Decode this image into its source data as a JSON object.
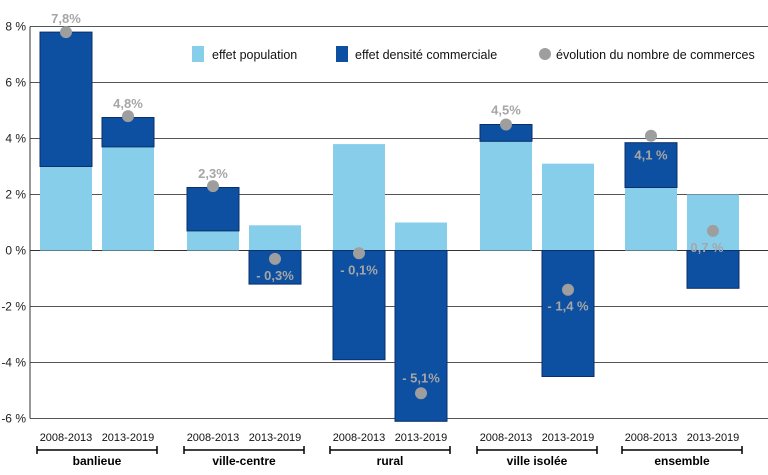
{
  "chart_data": {
    "type": "bar",
    "stacked": true,
    "ylim": [
      -6,
      8
    ],
    "y_ticks": [
      -6,
      -4,
      -2,
      0,
      2,
      4,
      6,
      8
    ],
    "y_tick_labels": [
      "-6 %",
      "-4 %",
      "-2 %",
      "0 %",
      "2 %",
      "4 %",
      "6 %",
      "8 %"
    ],
    "grid": "horizontal",
    "legend_position": "top",
    "groups": [
      "banlieue",
      "ville-centre",
      "rural",
      "ville isolée",
      "ensemble"
    ],
    "periods": [
      "2008-2013",
      "2013-2019"
    ],
    "categories": [
      "banlieue 2008-2013",
      "banlieue 2013-2019",
      "ville-centre 2008-2013",
      "ville-centre 2013-2019",
      "rural 2008-2013",
      "rural 2013-2019",
      "ville isolée 2008-2013",
      "ville isolée 2013-2019",
      "ensemble 2008-2013",
      "ensemble 2013-2019"
    ],
    "series": [
      {
        "name": "effet population",
        "kind": "bar",
        "color": "#87ceeb",
        "values": [
          3.0,
          3.7,
          0.7,
          0.9,
          3.8,
          1.0,
          3.9,
          3.1,
          2.25,
          2.0
        ]
      },
      {
        "name": "effet densité commerciale",
        "kind": "bar",
        "color": "#0d4fa0",
        "values": [
          4.8,
          1.05,
          1.55,
          -1.2,
          -3.9,
          -6.1,
          0.6,
          -4.5,
          1.6,
          -1.35
        ]
      },
      {
        "name": "évolution du nombre de commerces",
        "kind": "point",
        "color": "#9e9e9e",
        "values": [
          7.8,
          4.8,
          2.3,
          -0.3,
          -0.1,
          -5.1,
          4.5,
          -1.4,
          4.1,
          0.7
        ],
        "labels": [
          "7,8%",
          "4,8%",
          "2,3%",
          "- 0,3%",
          "- 0,1%",
          "- 5,1%",
          "4,5%",
          "- 1,4 %",
          "4,1 %",
          "0,7 %"
        ]
      }
    ]
  }
}
